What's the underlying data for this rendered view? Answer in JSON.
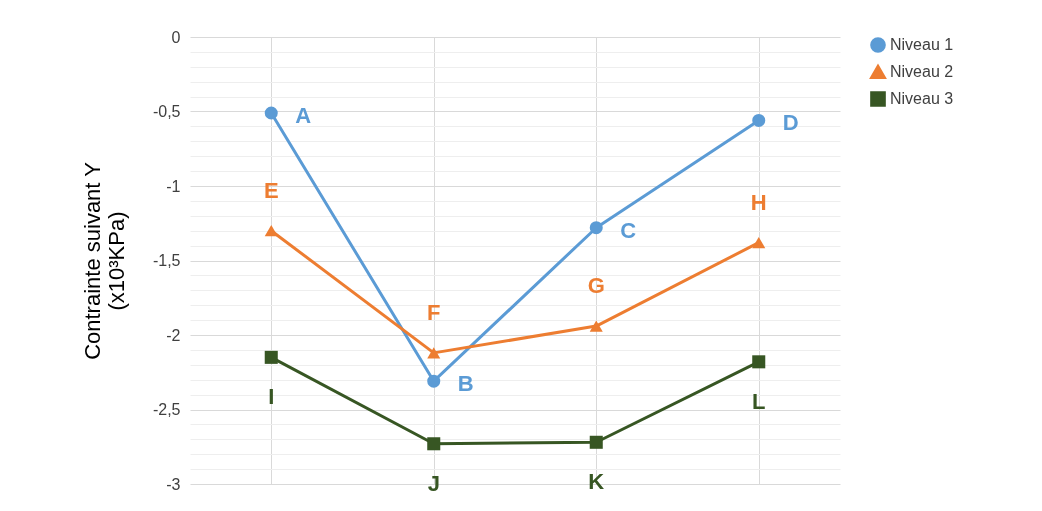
{
  "chart_data": {
    "type": "line",
    "ylabel": "Contrainte suivant Y (x10³KPa)",
    "categories": [
      null,
      null,
      null,
      null
    ],
    "series": [
      {
        "name": "Niveau 1",
        "color": "#5b9bd5",
        "marker": "circle",
        "values": [
          -0.51,
          -2.31,
          -1.28,
          -0.56
        ],
        "value_labels": [
          "A",
          "B",
          "C",
          "D"
        ]
      },
      {
        "name": "Niveau 2",
        "color": "#ed7d31",
        "marker": "triangle",
        "values": [
          -1.3,
          -2.12,
          -1.94,
          -1.38
        ],
        "value_labels": [
          "E",
          "F",
          "G",
          "H"
        ]
      },
      {
        "name": "Niveau 3",
        "color": "#375623",
        "marker": "square",
        "values": [
          -2.15,
          -2.73,
          -2.72,
          -2.18
        ],
        "value_labels": [
          "I",
          "J",
          "K",
          "L"
        ]
      }
    ],
    "ylim": [
      -3,
      0
    ],
    "yticks": [
      {
        "value": -3,
        "label": "-3"
      },
      {
        "value": -2.9,
        "label": null
      },
      {
        "value": -2.8,
        "label": null
      },
      {
        "value": -2.7,
        "label": null
      },
      {
        "value": -2.6,
        "label": null
      },
      {
        "value": -2.5,
        "label": "-2,5"
      },
      {
        "value": -2.4,
        "label": null
      },
      {
        "value": -2.3,
        "label": null
      },
      {
        "value": -2.2,
        "label": null
      },
      {
        "value": -2.1,
        "label": null
      },
      {
        "value": -2,
        "label": "-2"
      },
      {
        "value": -1.9,
        "label": null
      },
      {
        "value": -1.8,
        "label": null
      },
      {
        "value": -1.7,
        "label": null
      },
      {
        "value": -1.6,
        "label": null
      },
      {
        "value": -1.5,
        "label": "-1,5"
      },
      {
        "value": -1.4,
        "label": null
      },
      {
        "value": -1.3,
        "label": null
      },
      {
        "value": -1.2,
        "label": null
      },
      {
        "value": -1.1,
        "label": null
      },
      {
        "value": -1,
        "label": "-1"
      },
      {
        "value": -0.9,
        "label": null
      },
      {
        "value": -0.8,
        "label": null
      },
      {
        "value": -0.7,
        "label": null
      },
      {
        "value": -0.6,
        "label": null
      },
      {
        "value": -0.5,
        "label": "-0,5"
      },
      {
        "value": -0.4,
        "label": null
      },
      {
        "value": -0.3,
        "label": null
      },
      {
        "value": -0.2,
        "label": null
      },
      {
        "value": -0.1,
        "label": null
      },
      {
        "value": 0,
        "label": "0"
      }
    ],
    "grid": true,
    "legend": "right"
  }
}
